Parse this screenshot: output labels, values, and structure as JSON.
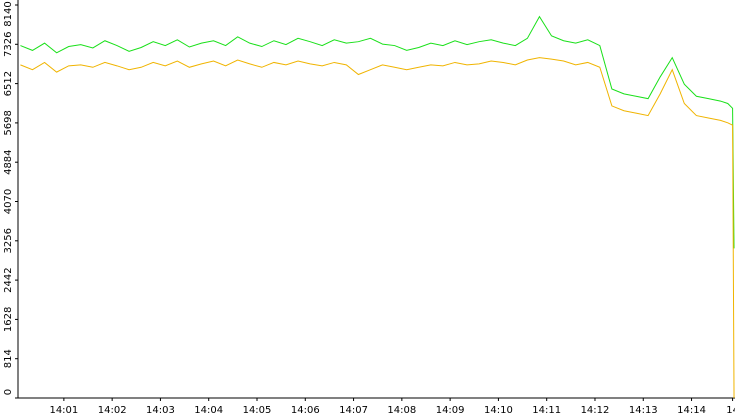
{
  "chart_data": {
    "type": "line",
    "x": [
      840.1,
      840.35,
      840.6,
      840.85,
      841.1,
      841.35,
      841.6,
      841.85,
      842.1,
      842.35,
      842.6,
      842.85,
      843.1,
      843.35,
      843.6,
      843.85,
      844.1,
      844.35,
      844.6,
      844.85,
      845.1,
      845.35,
      845.6,
      845.85,
      846.1,
      846.35,
      846.6,
      846.85,
      847.1,
      847.35,
      847.6,
      847.85,
      848.1,
      848.35,
      848.6,
      848.85,
      849.1,
      849.35,
      849.6,
      849.85,
      850.1,
      850.35,
      850.6,
      850.85,
      851.1,
      851.35,
      851.6,
      851.85,
      852.1,
      852.35,
      852.6,
      852.85,
      853.1,
      853.35,
      853.6,
      853.85,
      854.1,
      854.35,
      854.6,
      854.75,
      854.85,
      854.88
    ],
    "series": [
      {
        "color": "#19e019",
        "values": [
          7300,
          7200,
          7350,
          7150,
          7280,
          7320,
          7250,
          7400,
          7300,
          7180,
          7260,
          7380,
          7300,
          7420,
          7270,
          7350,
          7400,
          7300,
          7480,
          7350,
          7280,
          7400,
          7320,
          7450,
          7380,
          7300,
          7420,
          7350,
          7380,
          7450,
          7330,
          7300,
          7200,
          7260,
          7350,
          7300,
          7400,
          7320,
          7380,
          7420,
          7350,
          7300,
          7450,
          7900,
          7500,
          7400,
          7350,
          7420,
          7300,
          6400,
          6300,
          6250,
          6200,
          6650,
          7050,
          6500,
          6250,
          6200,
          6150,
          6100,
          6000,
          3100
        ]
      },
      {
        "color": "#f0b400",
        "values": [
          6900,
          6800,
          6950,
          6750,
          6880,
          6900,
          6850,
          6950,
          6880,
          6800,
          6850,
          6950,
          6880,
          6980,
          6850,
          6920,
          6980,
          6880,
          7000,
          6920,
          6850,
          6950,
          6900,
          6980,
          6920,
          6880,
          6950,
          6900,
          6700,
          6800,
          6900,
          6850,
          6800,
          6850,
          6900,
          6880,
          6950,
          6900,
          6920,
          6980,
          6950,
          6900,
          7000,
          7050,
          7020,
          6980,
          6900,
          6950,
          6850,
          6050,
          5950,
          5900,
          5850,
          6300,
          6800,
          6100,
          5850,
          5800,
          5750,
          5700,
          5650,
          0
        ]
      }
    ],
    "xlim": [
      840.05,
      854.9
    ],
    "xticks": [
      {
        "value": 841,
        "label": "14:01"
      },
      {
        "value": 842,
        "label": "14:02"
      },
      {
        "value": 843,
        "label": "14:03"
      },
      {
        "value": 844,
        "label": "14:04"
      },
      {
        "value": 845,
        "label": "14:05"
      },
      {
        "value": 846,
        "label": "14:06"
      },
      {
        "value": 847,
        "label": "14:07"
      },
      {
        "value": 848,
        "label": "14:08"
      },
      {
        "value": 849,
        "label": "14:09"
      },
      {
        "value": 850,
        "label": "14:10"
      },
      {
        "value": 851,
        "label": "14:11"
      },
      {
        "value": 852,
        "label": "14:12"
      },
      {
        "value": 853,
        "label": "14:13"
      },
      {
        "value": 854,
        "label": "14:14"
      },
      {
        "value": 854.85,
        "label": "14"
      }
    ],
    "ylim": [
      0,
      8140
    ],
    "yticks": [
      0,
      814,
      1628,
      2442,
      3256,
      4070,
      4884,
      5698,
      6512,
      7326,
      8140
    ]
  }
}
